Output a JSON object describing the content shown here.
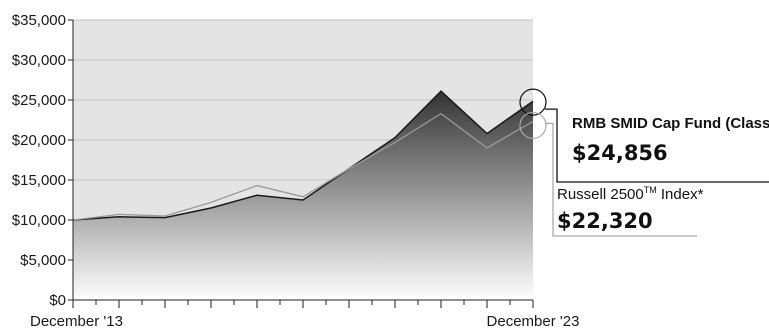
{
  "chart_data": {
    "type": "area",
    "x": [
      "Dec 2013",
      "Dec 2014",
      "Dec 2015",
      "Dec 2016",
      "Dec 2017",
      "Dec 2018",
      "Dec 2019",
      "Dec 2020",
      "Dec 2021",
      "Dec 2022",
      "Dec 2023"
    ],
    "x_tick_labels": [
      "December '13",
      "December '23"
    ],
    "x_minor_ticks": 20,
    "ylim": [
      0,
      35000
    ],
    "y_ticks": [
      0,
      5000,
      10000,
      15000,
      20000,
      25000,
      30000,
      35000
    ],
    "y_tick_labels": [
      "$0",
      "$5,000",
      "$10,000",
      "$15,000",
      "$20,000",
      "$25,000",
      "$30,000",
      "$35,000"
    ],
    "grid": "horizontal",
    "series": [
      {
        "name": "RMB SMID Cap Fund (Class I)",
        "value_label": "$24,856",
        "color": "#1a1a1a",
        "style": "filled-area-gradient",
        "values": [
          10000,
          10400,
          10300,
          11500,
          13100,
          12500,
          16400,
          20300,
          26100,
          20800,
          24856
        ]
      },
      {
        "name": "Russell 2500",
        "trademark": "TM",
        "name_suffix": " Index*",
        "value_label": "$22,320",
        "color": "#9a9a9a",
        "style": "line",
        "values": [
          10000,
          10700,
          10500,
          12200,
          14300,
          12900,
          16400,
          19700,
          23300,
          19000,
          22320
        ]
      }
    ]
  },
  "colors": {
    "plot_background": "#e4e4e4",
    "gridline": "#c4c4c4",
    "area_top": "#333333",
    "area_bottom": "#ffffff"
  }
}
